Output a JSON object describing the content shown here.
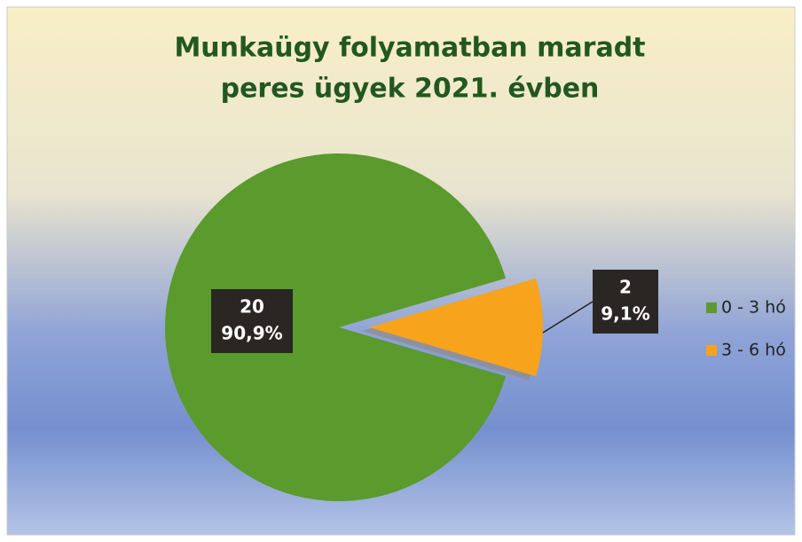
{
  "chart_data": {
    "type": "pie",
    "title": [
      "Munkaügy folyamatban maradt",
      "peres ügyek 2021. évben"
    ],
    "categories": [
      "0 - 3 hó",
      "3 - 6 hó"
    ],
    "values": [
      20,
      2
    ],
    "percent_labels": [
      "90,9%",
      "9,1%"
    ],
    "colors": [
      "#5b9a2c",
      "#f7a31c"
    ],
    "legend": "right"
  }
}
